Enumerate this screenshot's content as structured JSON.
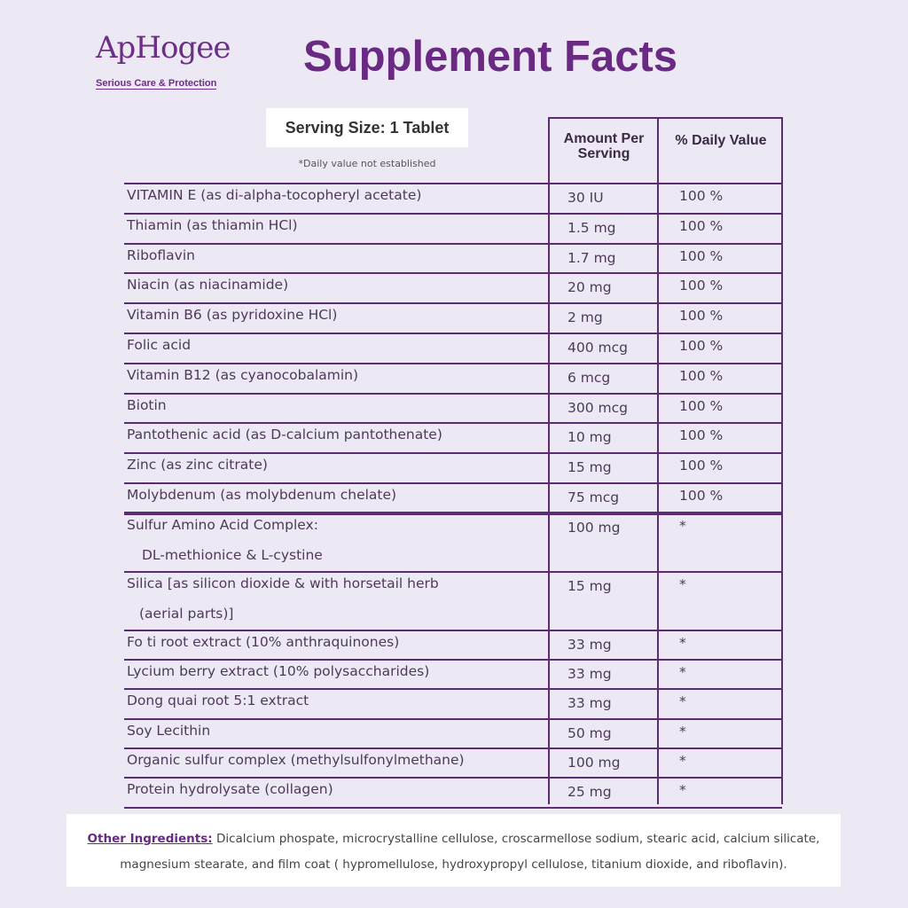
{
  "logo": {
    "brand": "ApHogee",
    "tagline": "Serious Care & Protection"
  },
  "title": "Supplement Facts",
  "serving_size": "Serving Size: 1 Tablet",
  "note": "*Daily value not established",
  "table": {
    "header": [
      "Amount Per Serving",
      "% Daily Value"
    ],
    "rows": [
      {
        "name": "VITAMIN E (as di-alpha-tocopheryl acetate)",
        "amount": "30 IU",
        "dv": "100 %"
      },
      {
        "name": "Thiamin (as thiamin HCl)",
        "amount": "1.5 mg",
        "dv": "100 %"
      },
      {
        "name": "Riboflavin",
        "amount": "1.7 mg",
        "dv": "100 %"
      },
      {
        "name": "Niacin (as niacinamide)",
        "amount": "20 mg",
        "dv": "100 %"
      },
      {
        "name": "Vitamin B6 (as pyridoxine HCl)",
        "amount": "2 mg",
        "dv": "100 %"
      },
      {
        "name": "Folic acid",
        "amount": "400 mcg",
        "dv": "100 %"
      },
      {
        "name": "Vitamin B12 (as cyanocobalamin)",
        "amount": "6 mcg",
        "dv": "100 %"
      },
      {
        "name": "Biotin",
        "amount": "300 mcg",
        "dv": "100 %"
      },
      {
        "name": "Pantothenic acid (as D-calcium pantothenate)",
        "amount": "10 mg",
        "dv": "100 %"
      },
      {
        "name": "Zinc (as zinc citrate)",
        "amount": "15 mg",
        "dv": "100 %"
      },
      {
        "name": "Molybdenum (as molybdenum chelate)",
        "amount": "75 mcg",
        "dv": "100 %"
      },
      {
        "name": "Sulfur Amino Acid Complex:",
        "detail": "DL-methionice & L-cystine",
        "amount": "100 mg",
        "dv": "*"
      },
      {
        "name": "Silica [as silicon dioxide & with horsetail herb",
        "detail": "(aerial parts)]",
        "amount": "15 mg",
        "dv": "*"
      },
      {
        "name": "Fo ti root extract (10% anthraquinones)",
        "amount": "33 mg",
        "dv": "*"
      },
      {
        "name": "Lycium berry extract (10% polysaccharides)",
        "amount": "33 mg",
        "dv": "*"
      },
      {
        "name": "Dong quai root 5:1 extract",
        "amount": "33 mg",
        "dv": "*"
      },
      {
        "name": "Soy Lecithin",
        "amount": "50 mg",
        "dv": "*"
      },
      {
        "name": "Organic sulfur complex (methylsulfonylmethane)",
        "amount": "100 mg",
        "dv": "*"
      },
      {
        "name": "Protein hydrolysate (collagen)",
        "amount": "25 mg",
        "dv": "*"
      }
    ]
  },
  "other_ingredients": {
    "label": "Other Ingredients:",
    "text": "Dicalcium phospate, microcrystalline cellulose, croscarmellose sodium, stearic acid, calcium silicate, magnesium stearate, and film coat ( hypromellulose, hydroxypropyl cellulose, titanium dioxide, and riboflavin)."
  }
}
